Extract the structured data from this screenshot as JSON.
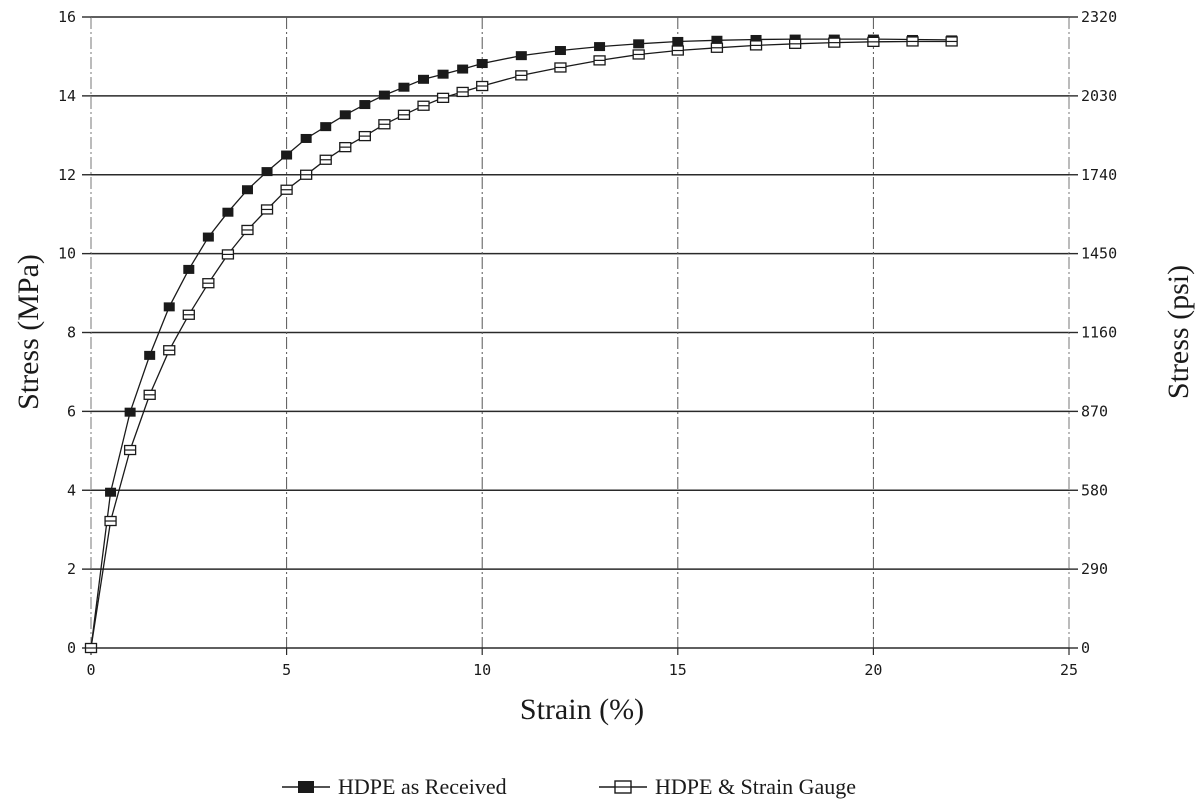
{
  "chart_data": {
    "type": "line",
    "title": "",
    "xlabel": "Strain (%)",
    "ylabel": "Stress (MPa)",
    "y2label": "Stress (psi)",
    "xlim": [
      0,
      25
    ],
    "ylim": [
      0,
      16
    ],
    "y2lim": [
      0,
      2320
    ],
    "xticks": [
      0,
      5,
      10,
      15,
      20,
      25
    ],
    "yticks": [
      0,
      2,
      4,
      6,
      8,
      10,
      12,
      14,
      16
    ],
    "y2ticks": [
      0,
      290,
      580,
      870,
      1160,
      1450,
      1740,
      2030,
      2320
    ],
    "grid": true,
    "legend": "bottom",
    "series": [
      {
        "name": "HDPE as Received",
        "marker": "filled-square",
        "color": "#1a1a1a",
        "x": [
          0,
          0.5,
          1,
          1.5,
          2,
          2.5,
          3,
          3.5,
          4,
          4.5,
          5,
          5.5,
          6,
          6.5,
          7,
          7.5,
          8,
          8.5,
          9,
          9.5,
          10,
          11,
          12,
          13,
          14,
          15,
          16,
          17,
          18,
          19,
          20,
          21,
          22
        ],
        "y": [
          0,
          3.95,
          5.98,
          7.42,
          8.65,
          9.6,
          10.42,
          11.05,
          11.62,
          12.08,
          12.5,
          12.92,
          13.22,
          13.52,
          13.78,
          14.02,
          14.22,
          14.42,
          14.55,
          14.68,
          14.82,
          15.02,
          15.15,
          15.25,
          15.32,
          15.38,
          15.41,
          15.43,
          15.44,
          15.44,
          15.44,
          15.43,
          15.42
        ]
      },
      {
        "name": "HDPE & Strain Gauge",
        "marker": "open-square",
        "color": "#1a1a1a",
        "x": [
          0,
          0.5,
          1,
          1.5,
          2,
          2.5,
          3,
          3.5,
          4,
          4.5,
          5,
          5.5,
          6,
          6.5,
          7,
          7.5,
          8,
          8.5,
          9,
          9.5,
          10,
          11,
          12,
          13,
          14,
          15,
          16,
          17,
          18,
          19,
          20,
          21,
          22
        ],
        "y": [
          0,
          3.22,
          5.02,
          6.42,
          7.55,
          8.45,
          9.25,
          9.98,
          10.6,
          11.12,
          11.62,
          12.0,
          12.38,
          12.7,
          12.98,
          13.28,
          13.52,
          13.75,
          13.95,
          14.1,
          14.25,
          14.52,
          14.72,
          14.9,
          15.05,
          15.15,
          15.22,
          15.28,
          15.32,
          15.35,
          15.37,
          15.38,
          15.38
        ]
      }
    ]
  }
}
